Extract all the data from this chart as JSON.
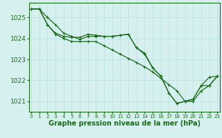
{
  "x": [
    0,
    1,
    2,
    3,
    4,
    5,
    6,
    7,
    8,
    9,
    10,
    11,
    12,
    13,
    14,
    15,
    16,
    17,
    18,
    19,
    20,
    21,
    22,
    23
  ],
  "line1": [
    1025.4,
    1025.4,
    1025.0,
    1024.65,
    1024.25,
    1024.1,
    1023.95,
    1024.1,
    1024.1,
    1024.1,
    1024.1,
    1024.15,
    1024.2,
    1023.55,
    1023.25,
    1022.6,
    1022.2,
    1021.4,
    1020.9,
    1021.0,
    1021.1,
    1021.75,
    1021.75,
    1022.2
  ],
  "line2": [
    1025.4,
    1025.4,
    1024.65,
    1024.2,
    1024.0,
    1023.85,
    1023.85,
    1023.85,
    1023.85,
    1023.65,
    1023.45,
    1023.25,
    1023.05,
    1022.85,
    1022.65,
    1022.4,
    1022.1,
    1021.8,
    1021.5,
    1021.0,
    1021.0,
    1021.5,
    1021.75,
    1022.2
  ],
  "line3": [
    1025.4,
    1025.4,
    1024.65,
    1024.25,
    1024.1,
    1024.05,
    1024.05,
    1024.2,
    1024.15,
    1024.1,
    1024.1,
    1024.15,
    1024.2,
    1023.55,
    1023.3,
    1022.6,
    1022.2,
    1021.4,
    1020.9,
    1021.0,
    1021.1,
    1021.75,
    1022.15,
    1022.2
  ],
  "line_color": "#1a6b1a",
  "marker": "+",
  "bg_color": "#d6f0f0",
  "grid_color": "#b8dede",
  "xlabel": "Graphe pression niveau de la mer (hPa)",
  "ylim": [
    1020.5,
    1025.7
  ],
  "yticks": [
    1021,
    1022,
    1023,
    1024,
    1025
  ],
  "xticks": [
    0,
    1,
    2,
    3,
    4,
    5,
    6,
    7,
    8,
    9,
    10,
    11,
    12,
    13,
    14,
    15,
    16,
    17,
    18,
    19,
    20,
    21,
    22,
    23
  ],
  "xlabel_color": "#1a6b1a",
  "xlabel_fontsize": 7.0,
  "ytick_fontsize": 6.5,
  "xtick_fontsize": 5.0,
  "line_width": 0.9,
  "marker_size": 3.5
}
